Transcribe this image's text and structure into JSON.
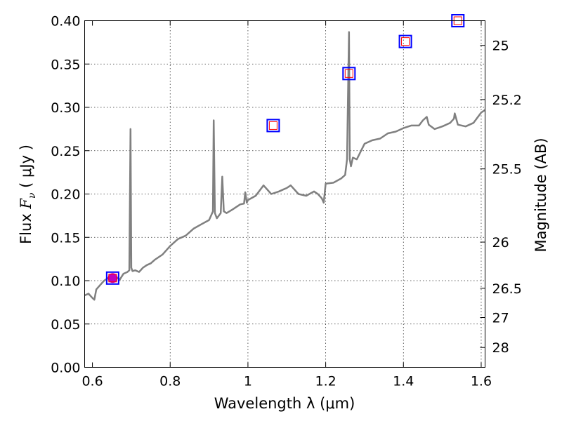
{
  "chart_data": {
    "type": "line",
    "xlabel": "Wavelength  λ (μm)",
    "ylabel": "Flux  F_ν  ( μJy )",
    "ylabel_parts": {
      "prefix": "Flux  ",
      "symbol": "F",
      "subscript": "ν",
      "suffix": "  ( μJy )"
    },
    "ylabel_right": "Magnitude (AB)",
    "xlim": [
      0.58,
      1.61
    ],
    "ylim": [
      0.0,
      0.4
    ],
    "grid": true,
    "x_ticks": [
      0.6,
      0.8,
      1.0,
      1.2,
      1.4,
      1.6
    ],
    "x_tick_labels": [
      "0.6",
      "0.8",
      "1",
      "1.2",
      "1.4",
      "1.6"
    ],
    "y_ticks": [
      0.0,
      0.05,
      0.1,
      0.15,
      0.2,
      0.25,
      0.3,
      0.35,
      0.4
    ],
    "y_tick_labels": [
      "0.00",
      "0.05",
      "0.10",
      "0.15",
      "0.20",
      "0.25",
      "0.30",
      "0.35",
      "0.40"
    ],
    "right_ticks": [
      {
        "flux": 0.3715,
        "label": "25"
      },
      {
        "flux": 0.309,
        "label": "25.2"
      },
      {
        "flux": 0.229,
        "label": "25.5"
      },
      {
        "flux": 0.1445,
        "label": "26"
      },
      {
        "flux": 0.0912,
        "label": "26.5"
      },
      {
        "flux": 0.0575,
        "label": "27"
      },
      {
        "flux": 0.0229,
        "label": "28"
      }
    ],
    "series": [
      {
        "name": "model spectrum",
        "color": "#808080",
        "x": [
          0.58,
          0.59,
          0.6,
          0.605,
          0.61,
          0.62,
          0.63,
          0.64,
          0.65,
          0.66,
          0.67,
          0.68,
          0.69,
          0.695,
          0.698,
          0.7,
          0.703,
          0.71,
          0.72,
          0.73,
          0.74,
          0.75,
          0.76,
          0.78,
          0.8,
          0.82,
          0.84,
          0.86,
          0.88,
          0.9,
          0.905,
          0.91,
          0.912,
          0.915,
          0.92,
          0.93,
          0.934,
          0.938,
          0.945,
          0.96,
          0.98,
          0.99,
          0.993,
          0.997,
          1.0,
          1.02,
          1.04,
          1.06,
          1.08,
          1.09,
          1.1,
          1.11,
          1.13,
          1.15,
          1.17,
          1.18,
          1.19,
          1.195,
          1.2,
          1.22,
          1.24,
          1.25,
          1.255,
          1.26,
          1.262,
          1.265,
          1.27,
          1.28,
          1.3,
          1.32,
          1.34,
          1.36,
          1.38,
          1.4,
          1.42,
          1.44,
          1.45,
          1.46,
          1.465,
          1.48,
          1.5,
          1.52,
          1.53,
          1.532,
          1.54,
          1.56,
          1.58,
          1.6,
          1.61
        ],
        "values": [
          0.083,
          0.085,
          0.08,
          0.078,
          0.09,
          0.095,
          0.1,
          0.103,
          0.104,
          0.105,
          0.101,
          0.108,
          0.11,
          0.112,
          0.275,
          0.115,
          0.111,
          0.112,
          0.11,
          0.115,
          0.118,
          0.12,
          0.124,
          0.13,
          0.14,
          0.148,
          0.152,
          0.16,
          0.165,
          0.17,
          0.175,
          0.18,
          0.285,
          0.178,
          0.172,
          0.178,
          0.22,
          0.18,
          0.178,
          0.182,
          0.188,
          0.189,
          0.202,
          0.19,
          0.193,
          0.198,
          0.21,
          0.2,
          0.203,
          0.205,
          0.207,
          0.21,
          0.2,
          0.198,
          0.203,
          0.2,
          0.195,
          0.19,
          0.212,
          0.213,
          0.218,
          0.222,
          0.24,
          0.387,
          0.24,
          0.232,
          0.242,
          0.24,
          0.258,
          0.262,
          0.264,
          0.27,
          0.272,
          0.276,
          0.279,
          0.279,
          0.285,
          0.289,
          0.28,
          0.275,
          0.278,
          0.282,
          0.287,
          0.293,
          0.28,
          0.278,
          0.282,
          0.294,
          0.297
        ]
      }
    ],
    "markers": [
      {
        "name": "photometry point 1",
        "x": 0.652,
        "y": 0.103,
        "outer_color": "#0000ff",
        "inner_color": "#ff0000",
        "fill": "#bf00bf",
        "filled": true
      },
      {
        "name": "photometry point 2",
        "x": 1.065,
        "y": 0.279,
        "outer_color": "#0000ff",
        "inner_color": "#ff0000",
        "filled": false
      },
      {
        "name": "photometry point 3",
        "x": 1.26,
        "y": 0.339,
        "outer_color": "#0000ff",
        "inner_color": "#ff0000",
        "filled": false
      },
      {
        "name": "photometry point 4",
        "x": 1.405,
        "y": 0.376,
        "outer_color": "#0000ff",
        "inner_color": "#ff0000",
        "filled": false
      },
      {
        "name": "photometry point 5",
        "x": 1.54,
        "y": 0.4,
        "outer_color": "#0000ff",
        "inner_color": "#ff0000",
        "filled": false
      }
    ]
  }
}
